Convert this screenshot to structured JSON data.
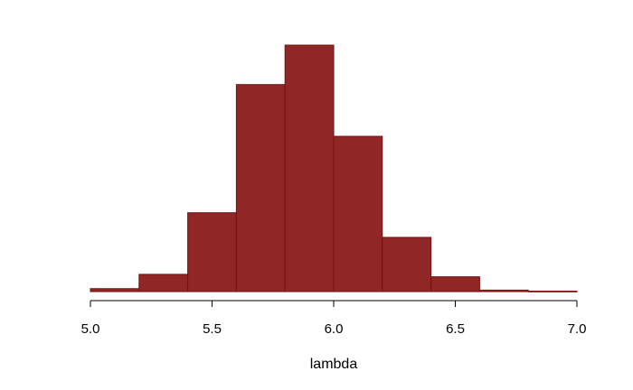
{
  "chart_data": {
    "type": "bar",
    "title": "",
    "xlabel": "lambda",
    "ylabel": "",
    "xlim": [
      5.0,
      7.0
    ],
    "xticks": [
      "5.0",
      "5.5",
      "6.0",
      "6.5",
      "7.0"
    ],
    "bin_edges": [
      5.0,
      5.2,
      5.4,
      5.6,
      5.8,
      6.0,
      6.2,
      6.4,
      6.6,
      6.8,
      7.0
    ],
    "values": [
      0.012,
      0.07,
      0.32,
      0.84,
      1.0,
      0.63,
      0.22,
      0.06,
      0.006,
      0.002
    ],
    "ylim": [
      0,
      1.0
    ],
    "y_axis_shown": false,
    "grid": false,
    "bar_color": "#8f2727",
    "bar_edge_color": "#7a0f0f"
  }
}
